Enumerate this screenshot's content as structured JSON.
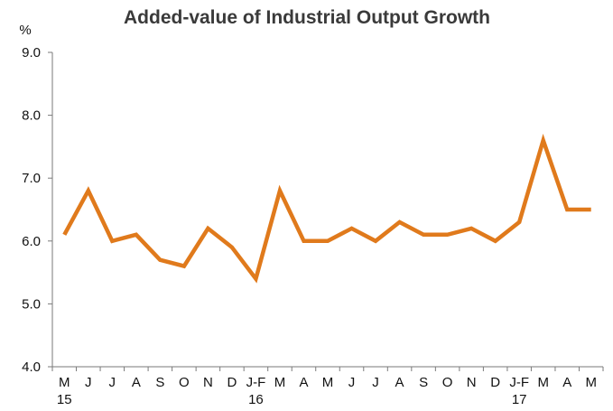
{
  "chart_data": {
    "type": "line",
    "title": "Added-value of Industrial Output Growth",
    "ylabel": "%",
    "xlabel": "",
    "ylim": [
      4.0,
      9.0
    ],
    "yticks": [
      "4.0",
      "5.0",
      "6.0",
      "7.0",
      "8.0",
      "9.0"
    ],
    "categories": [
      "M",
      "J",
      "J",
      "A",
      "S",
      "O",
      "N",
      "D",
      "J-F",
      "M",
      "A",
      "M",
      "J",
      "J",
      "A",
      "S",
      "O",
      "N",
      "D",
      "J-F",
      "M",
      "A",
      "M"
    ],
    "year_labels": [
      {
        "index": 0,
        "label": "15"
      },
      {
        "index": 8,
        "label": "16"
      },
      {
        "index": 19,
        "label": "17"
      }
    ],
    "series": [
      {
        "name": "Added-value of Industrial Output Growth",
        "color": "#E07A1C",
        "values": [
          6.1,
          6.8,
          6.0,
          6.1,
          5.7,
          5.6,
          6.2,
          5.9,
          5.4,
          6.8,
          6.0,
          6.0,
          6.2,
          6.0,
          6.3,
          6.1,
          6.1,
          6.2,
          6.0,
          6.3,
          7.6,
          6.5,
          6.5
        ]
      }
    ],
    "grid": false,
    "legend": "none"
  }
}
